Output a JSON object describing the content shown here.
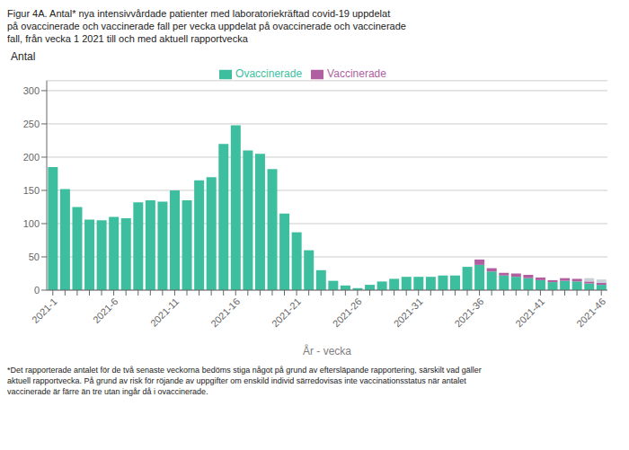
{
  "chart_data": {
    "type": "bar",
    "title": "Figur 4A. Antal* nya intensivvårdade patienter med laboratoriekräftad covid-19 uppdelat\npå ovaccinerade och vaccinerade fall per vecka uppdelat på ovaccinerade och vaccinerade\nfall, från vecka 1 2021 till och med aktuell rapportvecka",
    "ylabel": "Antal",
    "xlabel": "År - vecka",
    "annotations": [
      "*Det rapporterade antalet för de två senaste veckorna bedöms stiga något på grund av eftersläpande rapportering, särskilt vad gäller",
      "aktuell rapportvecka. På grund av risk för röjande av uppgifter om enskild individ särredovisas inte vaccinationsstatus när antalet",
      "vaccinerade är färre än tre utan ingår då i ovaccinerade."
    ],
    "categories": [
      "2021-1",
      null,
      null,
      null,
      null,
      "2021-6",
      null,
      null,
      null,
      null,
      "2021-11",
      null,
      null,
      null,
      null,
      "2021-16",
      null,
      null,
      null,
      null,
      "2021-21",
      null,
      null,
      null,
      null,
      "2021-26",
      null,
      null,
      null,
      null,
      "2021-31",
      null,
      null,
      null,
      null,
      "2021-36",
      null,
      null,
      null,
      null,
      "2021-41",
      null,
      null,
      null,
      null,
      "2021-46"
    ],
    "series": [
      {
        "name": "Ovaccinerade",
        "color": "#3dbf9f",
        "values": [
          185,
          152,
          125,
          106,
          105,
          110,
          108,
          132,
          135,
          133,
          150,
          135,
          165,
          170,
          220,
          248,
          210,
          205,
          182,
          115,
          87,
          60,
          30,
          14,
          7,
          3,
          8,
          13,
          17,
          20,
          20,
          20,
          22,
          22,
          35,
          38,
          28,
          22,
          20,
          18,
          15,
          12,
          14,
          13,
          10,
          8
        ]
      },
      {
        "name": "Vaccinerade",
        "color": "#b05fa0",
        "values": [
          0,
          0,
          0,
          0,
          0,
          0,
          0,
          0,
          0,
          0,
          0,
          0,
          0,
          0,
          0,
          0,
          0,
          0,
          0,
          0,
          0,
          0,
          0,
          0,
          0,
          0,
          0,
          0,
          0,
          0,
          0,
          0,
          0,
          0,
          0,
          8,
          5,
          4,
          5,
          5,
          4,
          3,
          4,
          4,
          3,
          3
        ]
      },
      {
        "color": "#c8d0d8",
        "values": [
          0,
          0,
          0,
          0,
          0,
          0,
          0,
          0,
          0,
          0,
          0,
          0,
          0,
          0,
          0,
          0,
          0,
          0,
          0,
          0,
          0,
          0,
          0,
          0,
          0,
          0,
          0,
          0,
          0,
          0,
          0,
          0,
          0,
          0,
          0,
          0,
          0,
          0,
          0,
          0,
          0,
          0,
          0,
          0,
          5,
          5
        ]
      }
    ],
    "stacked": true,
    "ylim": [
      0,
      315
    ],
    "yticks": [
      0,
      50,
      100,
      150,
      200,
      250,
      300
    ],
    "grid": true,
    "legend": "top"
  }
}
